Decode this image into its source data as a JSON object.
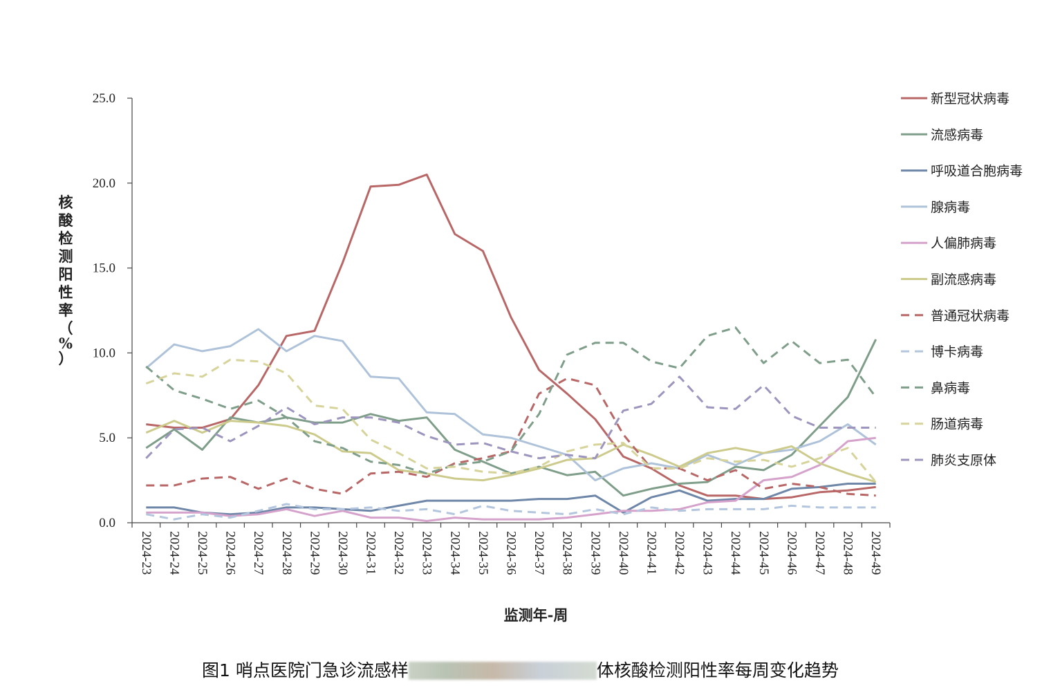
{
  "chart_data": {
    "type": "line",
    "title": "",
    "xlabel": "监测年-周",
    "ylabel": "核酸检测阳性率（%）",
    "ylim": [
      0,
      25
    ],
    "yticks": [
      "0.0",
      "5.0",
      "10.0",
      "15.0",
      "20.0",
      "25.0"
    ],
    "grid": false,
    "legend_position": "right",
    "categories": [
      "2024-23",
      "2024-24",
      "2024-25",
      "2024-26",
      "2024-27",
      "2024-28",
      "2024-29",
      "2024-30",
      "2024-31",
      "2024-32",
      "2024-33",
      "2024-34",
      "2024-35",
      "2024-36",
      "2024-37",
      "2024-38",
      "2024-39",
      "2024-40",
      "2024-41",
      "2024-42",
      "2024-43",
      "2024-44",
      "2024-45",
      "2024-46",
      "2024-47",
      "2024-48",
      "2024-49"
    ],
    "series": [
      {
        "name": "新型冠状病毒",
        "color": "#b86666",
        "dash": "solid",
        "values": [
          5.8,
          5.6,
          5.6,
          6.1,
          8.1,
          11.0,
          11.3,
          15.3,
          19.8,
          19.9,
          20.5,
          17.0,
          16.0,
          12.1,
          9.0,
          7.6,
          6.1,
          3.9,
          3.2,
          2.2,
          1.6,
          1.6,
          1.4,
          1.5,
          1.8,
          1.9,
          2.1
        ]
      },
      {
        "name": "流感病毒",
        "color": "#7f9e8a",
        "dash": "solid",
        "values": [
          4.4,
          5.5,
          4.3,
          6.2,
          5.9,
          6.2,
          5.9,
          5.9,
          6.4,
          6.0,
          6.2,
          4.3,
          3.6,
          2.9,
          3.3,
          2.8,
          3.0,
          1.6,
          2.0,
          2.3,
          2.4,
          3.3,
          3.1,
          4.0,
          5.7,
          7.4,
          10.8
        ]
      },
      {
        "name": "呼吸道合胞病毒",
        "color": "#6e86a8",
        "dash": "solid",
        "values": [
          0.9,
          0.9,
          0.6,
          0.5,
          0.6,
          0.9,
          0.9,
          0.8,
          0.7,
          1.0,
          1.3,
          1.3,
          1.3,
          1.3,
          1.4,
          1.4,
          1.6,
          0.6,
          1.5,
          1.9,
          1.3,
          1.4,
          1.4,
          2.0,
          2.1,
          2.3,
          2.3
        ]
      },
      {
        "name": "腺病毒",
        "color": "#aec2d9",
        "dash": "solid",
        "values": [
          9.1,
          10.5,
          10.1,
          10.4,
          11.4,
          10.1,
          11.0,
          10.7,
          8.6,
          8.5,
          6.5,
          6.4,
          5.2,
          5.0,
          4.5,
          4.0,
          2.5,
          3.2,
          3.5,
          3.2,
          4.0,
          3.4,
          4.1,
          4.3,
          4.8,
          5.8,
          4.6
        ]
      },
      {
        "name": "人偏肺病毒",
        "color": "#d5a2cb",
        "dash": "solid",
        "values": [
          0.6,
          0.6,
          0.6,
          0.4,
          0.5,
          0.8,
          0.4,
          0.7,
          0.3,
          0.3,
          0.1,
          0.3,
          0.2,
          0.2,
          0.2,
          0.3,
          0.5,
          0.7,
          0.7,
          0.8,
          1.2,
          1.3,
          2.5,
          2.7,
          3.4,
          4.8,
          5.0
        ]
      },
      {
        "name": "副流感病毒",
        "color": "#cccb8c",
        "dash": "solid",
        "values": [
          5.3,
          6.0,
          5.3,
          6.0,
          5.9,
          5.7,
          5.2,
          4.2,
          4.1,
          3.1,
          2.9,
          2.6,
          2.5,
          2.8,
          3.2,
          3.7,
          3.8,
          4.6,
          4.0,
          3.3,
          4.1,
          4.4,
          4.1,
          4.5,
          3.5,
          2.9,
          2.4
        ]
      },
      {
        "name": "普通冠状病毒",
        "color": "#b86666",
        "dash": "dashed",
        "values": [
          2.2,
          2.2,
          2.6,
          2.7,
          2.0,
          2.6,
          2.0,
          1.7,
          2.9,
          3.0,
          2.7,
          3.5,
          3.8,
          4.2,
          7.6,
          8.5,
          8.1,
          5.2,
          3.2,
          3.2,
          2.5,
          3.1,
          2.0,
          2.3,
          2.1,
          1.7,
          1.6
        ]
      },
      {
        "name": "博卡病毒",
        "color": "#b3c6dd",
        "dash": "dashed",
        "values": [
          0.5,
          0.2,
          0.5,
          0.3,
          0.7,
          1.1,
          0.8,
          0.8,
          0.9,
          0.7,
          0.8,
          0.5,
          1.0,
          0.7,
          0.6,
          0.5,
          0.8,
          0.5,
          0.9,
          0.7,
          0.8,
          0.8,
          0.8,
          1.0,
          0.9,
          0.9,
          0.9
        ]
      },
      {
        "name": "鼻病毒",
        "color": "#7f9e8a",
        "dash": "dashed",
        "values": [
          9.2,
          7.8,
          7.3,
          6.7,
          7.2,
          6.2,
          4.8,
          4.4,
          3.6,
          3.4,
          2.9,
          3.4,
          3.6,
          4.2,
          6.4,
          9.9,
          10.6,
          10.6,
          9.5,
          9.1,
          11.0,
          11.5,
          9.4,
          10.7,
          9.4,
          9.6,
          7.4
        ]
      },
      {
        "name": "肠道病毒",
        "color": "#d6d49a",
        "dash": "dashed",
        "values": [
          8.2,
          8.8,
          8.6,
          9.6,
          9.5,
          8.8,
          6.9,
          6.7,
          4.9,
          4.1,
          3.2,
          3.3,
          3.0,
          2.9,
          3.3,
          4.2,
          4.6,
          4.7,
          3.2,
          3.2,
          3.8,
          3.6,
          3.7,
          3.3,
          3.8,
          4.4,
          2.4
        ]
      },
      {
        "name": "肺炎支原体",
        "color": "#9d95bd",
        "dash": "dashed",
        "values": [
          3.8,
          5.5,
          5.6,
          4.8,
          5.7,
          6.8,
          5.8,
          6.2,
          6.2,
          5.9,
          5.1,
          4.6,
          4.7,
          4.2,
          3.8,
          4.0,
          3.8,
          6.6,
          7.0,
          8.6,
          6.8,
          6.7,
          8.1,
          6.3,
          5.6,
          5.6,
          5.6
        ]
      }
    ]
  },
  "caption": {
    "before": "图1 哨点医院门急诊流感样",
    "after": "体核酸检测阳性率每周变化趋势"
  }
}
